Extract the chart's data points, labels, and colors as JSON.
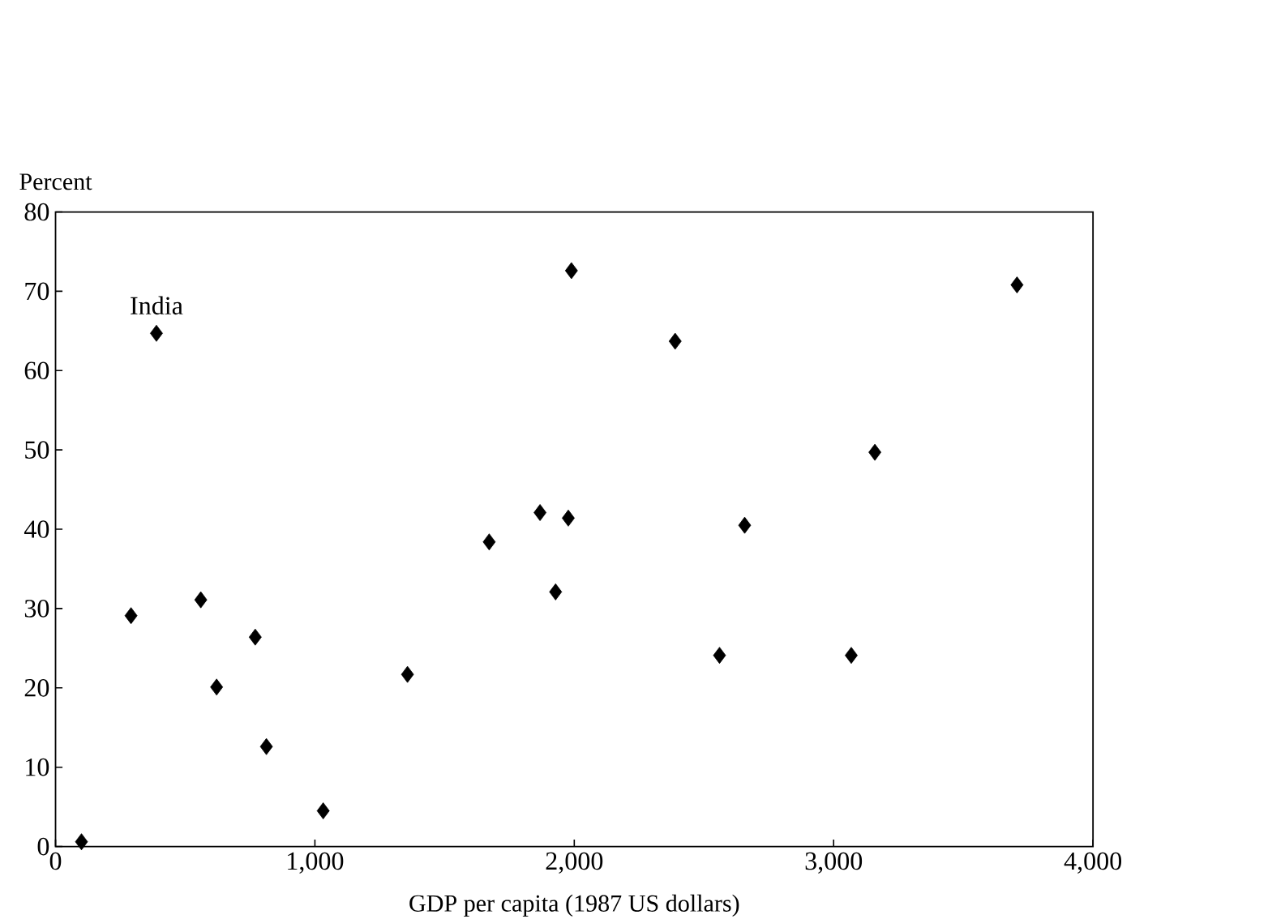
{
  "chart_data": {
    "type": "scatter",
    "xlabel": "GDP per capita (1987 US dollars)",
    "ylabel": "Percent",
    "x": [
      100,
      291,
      389,
      560,
      621,
      770,
      813,
      1032,
      1357,
      1672,
      1868,
      1928,
      1977,
      1989,
      2389,
      2560,
      2657,
      3068,
      3159,
      3707
    ],
    "values": [
      0.6,
      29.1,
      64.7,
      31.1,
      20.1,
      26.4,
      12.6,
      4.5,
      21.7,
      38.4,
      42.1,
      32.1,
      41.4,
      72.6,
      63.7,
      24.1,
      40.5,
      24.1,
      49.7,
      70.8
    ],
    "color": "#000000",
    "marker": "diamond",
    "xlim": [
      0,
      4000
    ],
    "ylim": [
      0,
      80
    ],
    "xticks": [
      0,
      {
        "value": 1000,
        "label": "1,000"
      },
      {
        "value": 2000,
        "label": "2,000"
      },
      {
        "value": 3000,
        "label": "3,000"
      },
      {
        "value": 4000,
        "label": "4,000"
      }
    ],
    "yticks": [
      0,
      10,
      20,
      30,
      40,
      50,
      60,
      70,
      80
    ],
    "annotations": [
      {
        "text": "India",
        "x": 389,
        "y": 64.7
      }
    ]
  }
}
